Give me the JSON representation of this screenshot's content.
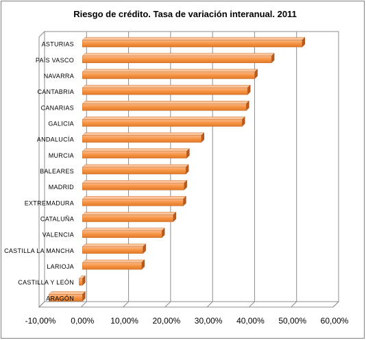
{
  "chart_data": {
    "type": "bar",
    "orientation": "horizontal",
    "title": "Riesgo de crédito. Tasa de variación interanual. 2011",
    "xlabel": "",
    "ylabel": "",
    "categories": [
      "ASTURIAS",
      "PAÍS VASCO",
      "NAVARRA",
      "CANTABRIA",
      "CANARIAS",
      "GALICIA",
      "ANDALUCÍA",
      "MURCIA",
      "BALEARES",
      "MADRID",
      "EXTREMADURA",
      "CATALUÑA",
      "VALENCIA",
      "CASTILLA LA MANCHA",
      "LARIOJA",
      "CASTILLA  Y LEÓN",
      "ARAGÓN"
    ],
    "values": [
      52.3,
      45.0,
      41.0,
      39.3,
      39.0,
      38.0,
      28.3,
      24.8,
      24.6,
      24.2,
      24.0,
      21.6,
      18.9,
      14.4,
      14.1,
      -0.8,
      -8.0
    ],
    "xlim": [
      -10,
      60
    ],
    "xticks": [
      -10,
      0,
      10,
      20,
      30,
      40,
      50,
      60
    ],
    "xtick_labels": [
      "-10,00%",
      "0,00%",
      "10,00%",
      "20,00%",
      "30,00%",
      "40,00%",
      "50,00%",
      "60,00%"
    ],
    "bar_color": "#f79646",
    "grid": true,
    "legend": "none"
  }
}
